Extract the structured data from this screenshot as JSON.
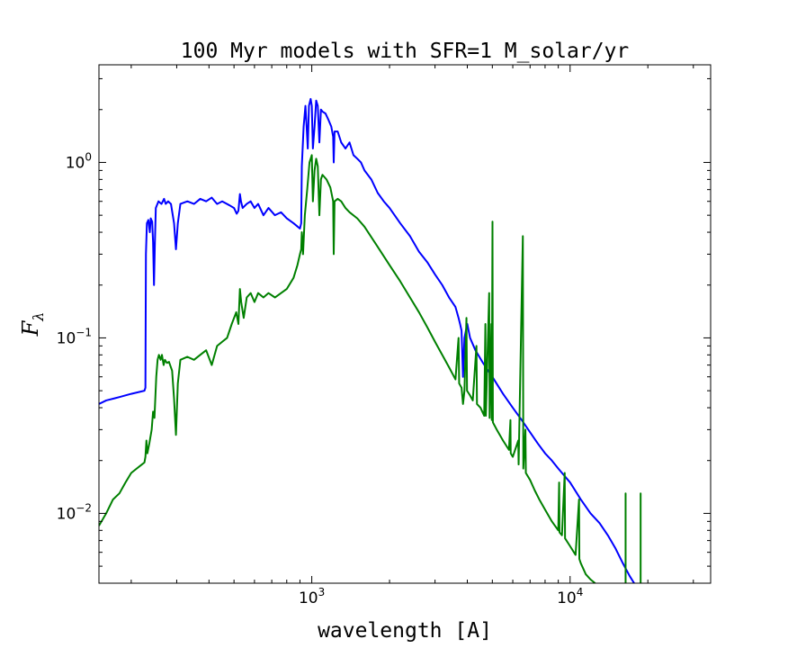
{
  "chart_data": {
    "type": "line",
    "title": "100 Myr models with SFR=1 M_solar/yr",
    "xlabel": "wavelength [A]",
    "ylabel": "F",
    "ylabel_subscript": "λ",
    "xscale": "log",
    "yscale": "log",
    "xlim": [
      150,
      35000
    ],
    "ylim": [
      0.004,
      3.6
    ],
    "grid": false,
    "x_ticks": [
      {
        "value": 1000,
        "base": "10",
        "exp": "3"
      },
      {
        "value": 10000,
        "base": "10",
        "exp": "4"
      }
    ],
    "y_ticks": [
      {
        "value": 0.01,
        "base": "10",
        "exp": "−2"
      },
      {
        "value": 0.1,
        "base": "10",
        "exp": "−1"
      },
      {
        "value": 1,
        "base": "10",
        "exp": "0"
      }
    ],
    "series": [
      {
        "color": "#0000ff",
        "points": [
          [
            150,
            0.042
          ],
          [
            160,
            0.044
          ],
          [
            180,
            0.046
          ],
          [
            200,
            0.048
          ],
          [
            225,
            0.05
          ],
          [
            227,
            0.052
          ],
          [
            228,
            0.3
          ],
          [
            230,
            0.45
          ],
          [
            233,
            0.47
          ],
          [
            236,
            0.4
          ],
          [
            238,
            0.48
          ],
          [
            241,
            0.46
          ],
          [
            243,
            0.35
          ],
          [
            245,
            0.2
          ],
          [
            247,
            0.35
          ],
          [
            249,
            0.55
          ],
          [
            255,
            0.6
          ],
          [
            262,
            0.58
          ],
          [
            268,
            0.62
          ],
          [
            272,
            0.58
          ],
          [
            278,
            0.6
          ],
          [
            285,
            0.58
          ],
          [
            293,
            0.45
          ],
          [
            298,
            0.32
          ],
          [
            303,
            0.45
          ],
          [
            310,
            0.58
          ],
          [
            330,
            0.6
          ],
          [
            350,
            0.58
          ],
          [
            370,
            0.62
          ],
          [
            390,
            0.6
          ],
          [
            410,
            0.63
          ],
          [
            430,
            0.58
          ],
          [
            450,
            0.6
          ],
          [
            480,
            0.57
          ],
          [
            500,
            0.55
          ],
          [
            512,
            0.51
          ],
          [
            520,
            0.53
          ],
          [
            527,
            0.66
          ],
          [
            532,
            0.6
          ],
          [
            540,
            0.55
          ],
          [
            560,
            0.58
          ],
          [
            580,
            0.6
          ],
          [
            600,
            0.55
          ],
          [
            620,
            0.58
          ],
          [
            650,
            0.5
          ],
          [
            680,
            0.55
          ],
          [
            720,
            0.5
          ],
          [
            760,
            0.52
          ],
          [
            800,
            0.48
          ],
          [
            850,
            0.45
          ],
          [
            900,
            0.42
          ],
          [
            910,
            0.45
          ],
          [
            915,
            0.95
          ],
          [
            930,
            1.6
          ],
          [
            945,
            2.1
          ],
          [
            955,
            1.6
          ],
          [
            965,
            1.2
          ],
          [
            975,
            2.1
          ],
          [
            990,
            2.3
          ],
          [
            1000,
            2.1
          ],
          [
            1010,
            1.2
          ],
          [
            1025,
            1.6
          ],
          [
            1040,
            2.25
          ],
          [
            1055,
            2.1
          ],
          [
            1070,
            1.3
          ],
          [
            1085,
            2.0
          ],
          [
            1100,
            1.95
          ],
          [
            1130,
            1.9
          ],
          [
            1160,
            1.75
          ],
          [
            1190,
            1.6
          ],
          [
            1210,
            1.4
          ],
          [
            1216,
            1.0
          ],
          [
            1225,
            1.5
          ],
          [
            1260,
            1.5
          ],
          [
            1300,
            1.3
          ],
          [
            1350,
            1.2
          ],
          [
            1400,
            1.3
          ],
          [
            1450,
            1.1
          ],
          [
            1500,
            1.05
          ],
          [
            1550,
            1.0
          ],
          [
            1600,
            0.9
          ],
          [
            1700,
            0.8
          ],
          [
            1800,
            0.67
          ],
          [
            1900,
            0.6
          ],
          [
            2000,
            0.55
          ],
          [
            2200,
            0.45
          ],
          [
            2400,
            0.38
          ],
          [
            2600,
            0.31
          ],
          [
            2800,
            0.27
          ],
          [
            3000,
            0.23
          ],
          [
            3200,
            0.2
          ],
          [
            3400,
            0.17
          ],
          [
            3600,
            0.15
          ],
          [
            3700,
            0.13
          ],
          [
            3750,
            0.12
          ],
          [
            3800,
            0.11
          ],
          [
            3850,
            0.06
          ],
          [
            3900,
            0.1
          ],
          [
            3950,
            0.11
          ],
          [
            4000,
            0.12
          ],
          [
            4100,
            0.1
          ],
          [
            4300,
            0.085
          ],
          [
            4600,
            0.072
          ],
          [
            5000,
            0.06
          ],
          [
            5500,
            0.048
          ],
          [
            6000,
            0.04
          ],
          [
            6500,
            0.034
          ],
          [
            7000,
            0.029
          ],
          [
            7500,
            0.025
          ],
          [
            8000,
            0.022
          ],
          [
            8500,
            0.02
          ],
          [
            9000,
            0.018
          ],
          [
            10000,
            0.015
          ],
          [
            11000,
            0.012
          ],
          [
            12000,
            0.01
          ],
          [
            13000,
            0.0088
          ],
          [
            14000,
            0.0075
          ],
          [
            15000,
            0.0063
          ],
          [
            16000,
            0.0052
          ],
          [
            17000,
            0.0044
          ],
          [
            17700,
            0.004
          ]
        ]
      },
      {
        "color": "#008000",
        "points": [
          [
            150,
            0.0085
          ],
          [
            160,
            0.01
          ],
          [
            170,
            0.012
          ],
          [
            180,
            0.013
          ],
          [
            190,
            0.015
          ],
          [
            200,
            0.017
          ],
          [
            210,
            0.018
          ],
          [
            220,
            0.019
          ],
          [
            225,
            0.0195
          ],
          [
            227,
            0.021
          ],
          [
            229,
            0.026
          ],
          [
            231,
            0.022
          ],
          [
            235,
            0.025
          ],
          [
            240,
            0.03
          ],
          [
            243,
            0.038
          ],
          [
            246,
            0.035
          ],
          [
            250,
            0.06
          ],
          [
            253,
            0.075
          ],
          [
            256,
            0.08
          ],
          [
            260,
            0.075
          ],
          [
            263,
            0.08
          ],
          [
            267,
            0.07
          ],
          [
            270,
            0.075
          ],
          [
            275,
            0.072
          ],
          [
            280,
            0.073
          ],
          [
            288,
            0.065
          ],
          [
            293,
            0.045
          ],
          [
            298,
            0.028
          ],
          [
            303,
            0.055
          ],
          [
            310,
            0.075
          ],
          [
            330,
            0.078
          ],
          [
            350,
            0.075
          ],
          [
            370,
            0.08
          ],
          [
            390,
            0.085
          ],
          [
            410,
            0.07
          ],
          [
            430,
            0.09
          ],
          [
            450,
            0.095
          ],
          [
            470,
            0.1
          ],
          [
            490,
            0.12
          ],
          [
            510,
            0.14
          ],
          [
            520,
            0.12
          ],
          [
            527,
            0.19
          ],
          [
            533,
            0.16
          ],
          [
            545,
            0.13
          ],
          [
            560,
            0.17
          ],
          [
            580,
            0.18
          ],
          [
            600,
            0.16
          ],
          [
            620,
            0.18
          ],
          [
            650,
            0.17
          ],
          [
            680,
            0.18
          ],
          [
            720,
            0.17
          ],
          [
            760,
            0.18
          ],
          [
            800,
            0.19
          ],
          [
            850,
            0.22
          ],
          [
            880,
            0.26
          ],
          [
            900,
            0.3
          ],
          [
            910,
            0.32
          ],
          [
            915,
            0.4
          ],
          [
            925,
            0.3
          ],
          [
            940,
            0.5
          ],
          [
            960,
            0.7
          ],
          [
            980,
            1.0
          ],
          [
            1000,
            1.1
          ],
          [
            1010,
            0.6
          ],
          [
            1025,
            0.9
          ],
          [
            1040,
            1.05
          ],
          [
            1055,
            0.95
          ],
          [
            1070,
            0.5
          ],
          [
            1085,
            0.8
          ],
          [
            1100,
            0.85
          ],
          [
            1140,
            0.8
          ],
          [
            1180,
            0.72
          ],
          [
            1210,
            0.6
          ],
          [
            1216,
            0.3
          ],
          [
            1225,
            0.6
          ],
          [
            1260,
            0.62
          ],
          [
            1300,
            0.6
          ],
          [
            1350,
            0.55
          ],
          [
            1400,
            0.52
          ],
          [
            1500,
            0.48
          ],
          [
            1600,
            0.43
          ],
          [
            1800,
            0.33
          ],
          [
            2000,
            0.26
          ],
          [
            2200,
            0.21
          ],
          [
            2400,
            0.17
          ],
          [
            2600,
            0.14
          ],
          [
            2800,
            0.115
          ],
          [
            3000,
            0.095
          ],
          [
            3200,
            0.08
          ],
          [
            3400,
            0.068
          ],
          [
            3600,
            0.058
          ],
          [
            3700,
            0.1
          ],
          [
            3720,
            0.055
          ],
          [
            3800,
            0.052
          ],
          [
            3850,
            0.042
          ],
          [
            3900,
            0.05
          ],
          [
            3970,
            0.13
          ],
          [
            3990,
            0.05
          ],
          [
            4100,
            0.047
          ],
          [
            4200,
            0.044
          ],
          [
            4340,
            0.09
          ],
          [
            4360,
            0.042
          ],
          [
            4500,
            0.04
          ],
          [
            4650,
            0.036
          ],
          [
            4700,
            0.12
          ],
          [
            4720,
            0.036
          ],
          [
            4861,
            0.18
          ],
          [
            4880,
            0.035
          ],
          [
            4959,
            0.12
          ],
          [
            4975,
            0.034
          ],
          [
            5007,
            0.46
          ],
          [
            5025,
            0.033
          ],
          [
            5200,
            0.03
          ],
          [
            5500,
            0.026
          ],
          [
            5800,
            0.023
          ],
          [
            5876,
            0.034
          ],
          [
            5890,
            0.022
          ],
          [
            6000,
            0.021
          ],
          [
            6300,
            0.026
          ],
          [
            6320,
            0.019
          ],
          [
            6563,
            0.38
          ],
          [
            6590,
            0.018
          ],
          [
            6716,
            0.03
          ],
          [
            6740,
            0.017
          ],
          [
            7000,
            0.0155
          ],
          [
            7300,
            0.0135
          ],
          [
            7600,
            0.012
          ],
          [
            8000,
            0.0105
          ],
          [
            8500,
            0.009
          ],
          [
            9000,
            0.008
          ],
          [
            9069,
            0.015
          ],
          [
            9100,
            0.0078
          ],
          [
            9300,
            0.0075
          ],
          [
            9531,
            0.017
          ],
          [
            9560,
            0.0072
          ],
          [
            10000,
            0.0065
          ],
          [
            10500,
            0.0058
          ],
          [
            10830,
            0.012
          ],
          [
            10860,
            0.0055
          ],
          [
            11000,
            0.0052
          ],
          [
            11500,
            0.0045
          ],
          [
            12000,
            0.0042
          ],
          [
            12500,
            0.004
          ]
        ]
      },
      {
        "color": "#008000",
        "points": [
          [
            18750,
            0.004
          ],
          [
            18751,
            0.013
          ],
          [
            18752,
            0.004
          ]
        ]
      },
      {
        "color": "#008000",
        "points": [
          [
            16400,
            0.004
          ],
          [
            16401,
            0.013
          ],
          [
            16402,
            0.004
          ]
        ]
      }
    ]
  }
}
